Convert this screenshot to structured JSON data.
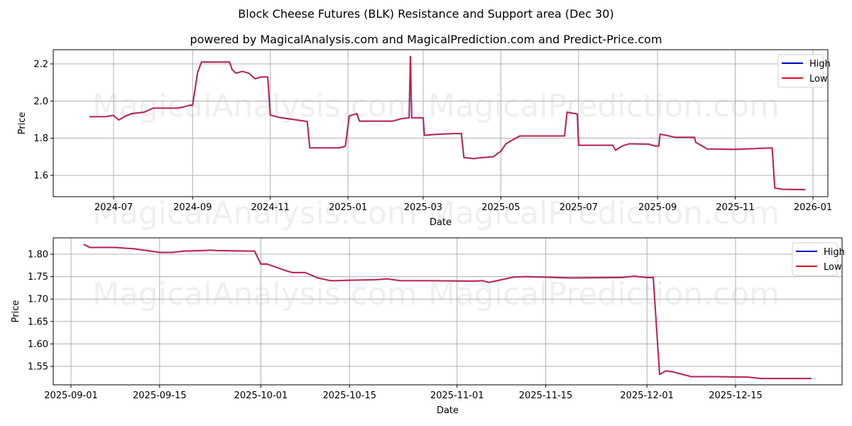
{
  "header": {
    "title": "Block Cheese Futures (BLK) Resistance and Support area (Dec 30)",
    "subtitle": "powered by MagicalAnalysis.com and MagicalPrediction.com and Predict-Price.com"
  },
  "watermarks": [
    "MagicalAnalysis.com",
    "MagicalPrediction.com"
  ],
  "colors": {
    "high": "#0000cc",
    "low": "#dd1122",
    "grid": "#b0b0b0"
  },
  "chart_data": [
    {
      "type": "line",
      "title": "Block Cheese Futures (BLK) Resistance and Support area (Dec 30) - full range",
      "xlabel": "Date",
      "ylabel": "Price",
      "ylim": [
        1.49,
        2.27
      ],
      "yticks": [
        "1.6",
        "1.8",
        "2.0",
        "2.2"
      ],
      "xticks": [
        "2024-07",
        "2024-09",
        "2024-11",
        "2025-01",
        "2025-03",
        "2025-05",
        "2025-07",
        "2025-09",
        "2025-11",
        "2026-01"
      ],
      "grid": true,
      "legend": {
        "position": "upper right",
        "entries": [
          "High",
          "Low"
        ]
      },
      "x": [
        "2024-06-12",
        "2024-06-25",
        "2024-06-30",
        "2024-07-01",
        "2024-07-05",
        "2024-07-10",
        "2024-07-15",
        "2024-07-25",
        "2024-08-01",
        "2024-08-20",
        "2024-08-25",
        "2024-08-30",
        "2024-09-01",
        "2024-09-05",
        "2024-09-08",
        "2024-09-30",
        "2024-10-02",
        "2024-10-05",
        "2024-10-10",
        "2024-10-15",
        "2024-10-20",
        "2024-10-25",
        "2024-10-30",
        "2024-11-01",
        "2024-11-08",
        "2024-11-30",
        "2024-12-02",
        "2024-12-25",
        "2024-12-30",
        "2025-01-02",
        "2025-01-08",
        "2025-01-10",
        "2025-02-05",
        "2025-02-12",
        "2025-02-18",
        "2025-02-19",
        "2025-02-20",
        "2025-03-01",
        "2025-03-02",
        "2025-03-10",
        "2025-03-25",
        "2025-03-31",
        "2025-04-02",
        "2025-04-10",
        "2025-04-15",
        "2025-04-25",
        "2025-05-01",
        "2025-05-05",
        "2025-05-10",
        "2025-05-16",
        "2025-06-20",
        "2025-06-22",
        "2025-06-30",
        "2025-07-01",
        "2025-07-28",
        "2025-07-30",
        "2025-08-05",
        "2025-08-10",
        "2025-08-25",
        "2025-08-30",
        "2025-09-02",
        "2025-09-03",
        "2025-09-10",
        "2025-09-15",
        "2025-09-30",
        "2025-10-01",
        "2025-10-10",
        "2025-10-31",
        "2025-11-01",
        "2025-11-30",
        "2025-12-02",
        "2025-12-08",
        "2025-12-26"
      ],
      "series": [
        {
          "name": "High",
          "values": [
            1.916,
            1.916,
            1.922,
            1.922,
            1.898,
            1.918,
            1.932,
            1.94,
            1.962,
            1.962,
            1.968,
            1.978,
            1.978,
            2.155,
            2.21,
            2.21,
            2.17,
            2.15,
            2.16,
            2.15,
            2.12,
            2.13,
            2.13,
            1.925,
            1.912,
            1.89,
            1.748,
            1.748,
            1.757,
            1.92,
            1.932,
            1.892,
            1.892,
            1.905,
            1.91,
            2.24,
            1.91,
            1.91,
            1.815,
            1.82,
            1.825,
            1.825,
            1.696,
            1.69,
            1.695,
            1.7,
            1.73,
            1.77,
            1.79,
            1.812,
            1.812,
            1.94,
            1.93,
            1.762,
            1.762,
            1.735,
            1.76,
            1.77,
            1.768,
            1.758,
            1.758,
            1.822,
            1.812,
            1.805,
            1.805,
            1.778,
            1.742,
            1.74,
            1.74,
            1.748,
            1.532,
            1.525,
            1.523
          ]
        },
        {
          "name": "Low",
          "values": [
            1.916,
            1.916,
            1.922,
            1.922,
            1.898,
            1.918,
            1.932,
            1.94,
            1.962,
            1.962,
            1.968,
            1.978,
            1.978,
            2.155,
            2.21,
            2.21,
            2.17,
            2.15,
            2.16,
            2.15,
            2.12,
            2.13,
            2.13,
            1.925,
            1.912,
            1.89,
            1.748,
            1.748,
            1.757,
            1.92,
            1.932,
            1.892,
            1.892,
            1.905,
            1.91,
            2.24,
            1.91,
            1.91,
            1.815,
            1.82,
            1.825,
            1.825,
            1.696,
            1.69,
            1.695,
            1.7,
            1.73,
            1.77,
            1.79,
            1.812,
            1.812,
            1.94,
            1.93,
            1.762,
            1.762,
            1.735,
            1.76,
            1.77,
            1.768,
            1.758,
            1.758,
            1.822,
            1.812,
            1.805,
            1.805,
            1.778,
            1.742,
            1.74,
            1.74,
            1.748,
            1.532,
            1.525,
            1.523
          ]
        }
      ]
    },
    {
      "type": "line",
      "title": "Block Cheese Futures (BLK) - zoomed Sep to Dec 2025",
      "xlabel": "Date",
      "ylabel": "Price",
      "ylim": [
        1.508,
        1.838
      ],
      "yticks": [
        "1.55",
        "1.60",
        "1.65",
        "1.70",
        "1.75",
        "1.80"
      ],
      "xticks": [
        "2025-09-01",
        "2025-09-15",
        "2025-10-01",
        "2025-10-15",
        "2025-11-01",
        "2025-11-15",
        "2025-12-01",
        "2025-12-15"
      ],
      "grid": true,
      "legend": {
        "position": "upper right",
        "entries": [
          "High",
          "Low"
        ]
      },
      "x": [
        "2025-09-03",
        "2025-09-04",
        "2025-09-08",
        "2025-09-10",
        "2025-09-11",
        "2025-09-15",
        "2025-09-16",
        "2025-09-17",
        "2025-09-19",
        "2025-09-22",
        "2025-09-23",
        "2025-09-24",
        "2025-09-29",
        "2025-09-30",
        "2025-10-01",
        "2025-10-02",
        "2025-10-05",
        "2025-10-06",
        "2025-10-08",
        "2025-10-10",
        "2025-10-12",
        "2025-10-13",
        "2025-10-15",
        "2025-10-19",
        "2025-10-21",
        "2025-10-23",
        "2025-10-27",
        "2025-11-03",
        "2025-11-04",
        "2025-11-05",
        "2025-11-06",
        "2025-11-10",
        "2025-11-12",
        "2025-11-19",
        "2025-11-26",
        "2025-11-27",
        "2025-11-29",
        "2025-12-01",
        "2025-12-02",
        "2025-12-03",
        "2025-12-04",
        "2025-12-05",
        "2025-12-08",
        "2025-12-12",
        "2025-12-17",
        "2025-12-19",
        "2025-12-27"
      ],
      "series": [
        {
          "name": "High",
          "values": [
            1.822,
            1.815,
            1.815,
            1.813,
            1.812,
            1.804,
            1.804,
            1.804,
            1.807,
            1.808,
            1.809,
            1.808,
            1.807,
            1.807,
            1.778,
            1.778,
            1.763,
            1.759,
            1.759,
            1.747,
            1.741,
            1.741,
            1.742,
            1.743,
            1.745,
            1.741,
            1.741,
            1.74,
            1.74,
            1.741,
            1.737,
            1.749,
            1.75,
            1.747,
            1.748,
            1.748,
            1.751,
            1.748,
            1.748,
            1.532,
            1.54,
            1.538,
            1.527,
            1.527,
            1.526,
            1.523,
            1.523
          ]
        },
        {
          "name": "Low",
          "values": [
            1.822,
            1.815,
            1.815,
            1.813,
            1.812,
            1.804,
            1.804,
            1.804,
            1.807,
            1.808,
            1.809,
            1.808,
            1.807,
            1.807,
            1.778,
            1.778,
            1.763,
            1.759,
            1.759,
            1.747,
            1.741,
            1.741,
            1.742,
            1.743,
            1.745,
            1.741,
            1.741,
            1.74,
            1.74,
            1.741,
            1.737,
            1.749,
            1.75,
            1.747,
            1.748,
            1.748,
            1.751,
            1.748,
            1.748,
            1.532,
            1.54,
            1.538,
            1.527,
            1.527,
            1.526,
            1.523,
            1.523
          ]
        }
      ]
    }
  ]
}
